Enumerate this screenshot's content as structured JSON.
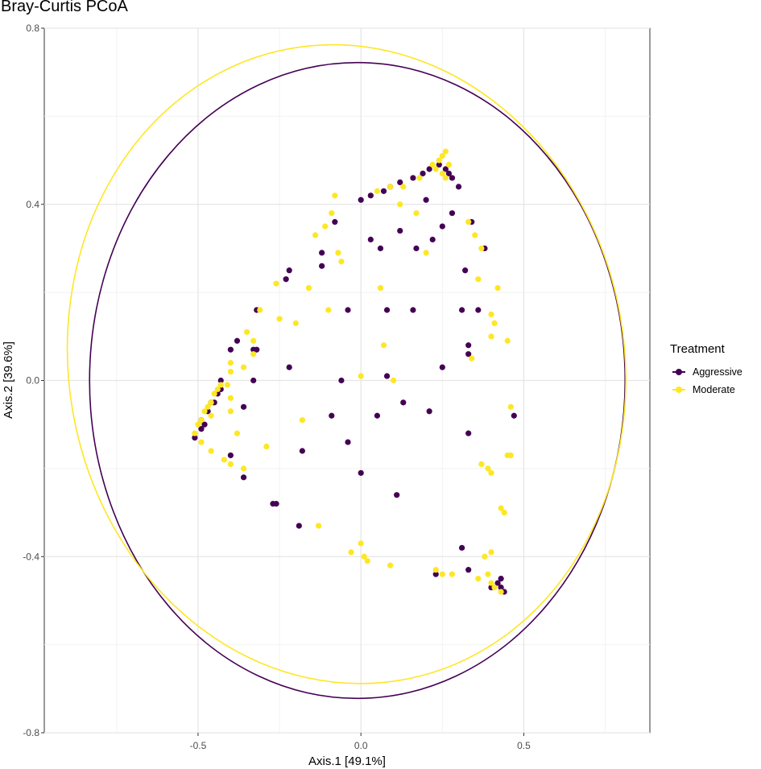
{
  "chart_data": {
    "type": "scatter",
    "title": "Bray-Curtis PCoA",
    "xlabel": "Axis.1   [49.1%]",
    "ylabel": "Axis.2   [39.6%]",
    "xlim": [
      -0.972,
      0.887
    ],
    "ylim": [
      -0.8,
      0.8
    ],
    "x_ticks": [
      -0.5,
      0.0,
      0.5
    ],
    "x_tick_labels": [
      "-0.5",
      "0.0",
      "0.5"
    ],
    "y_ticks": [
      -0.8,
      -0.4,
      0.0,
      0.4,
      0.8
    ],
    "y_tick_labels": [
      "-0.8",
      "-0.4",
      "0.0",
      "0.4",
      "0.8"
    ],
    "grid": true,
    "legend": {
      "title": "Treatment",
      "position": "right"
    },
    "series": [
      {
        "name": "Aggressive",
        "color": "#440154",
        "points": [
          [
            0.0,
            0.41
          ],
          [
            0.03,
            0.42
          ],
          [
            0.07,
            0.43
          ],
          [
            0.09,
            0.44
          ],
          [
            0.12,
            0.45
          ],
          [
            0.16,
            0.46
          ],
          [
            0.19,
            0.47
          ],
          [
            0.21,
            0.48
          ],
          [
            0.24,
            0.49
          ],
          [
            0.26,
            0.48
          ],
          [
            0.27,
            0.47
          ],
          [
            0.28,
            0.46
          ],
          [
            0.3,
            0.44
          ],
          [
            0.2,
            0.41
          ],
          [
            0.25,
            0.35
          ],
          [
            0.28,
            0.38
          ],
          [
            0.34,
            0.36
          ],
          [
            0.38,
            0.3
          ],
          [
            0.32,
            0.25
          ],
          [
            0.22,
            0.32
          ],
          [
            0.12,
            0.34
          ],
          [
            0.06,
            0.3
          ],
          [
            0.03,
            0.32
          ],
          [
            0.17,
            0.3
          ],
          [
            -0.04,
            0.16
          ],
          [
            0.08,
            0.16
          ],
          [
            0.16,
            0.16
          ],
          [
            0.31,
            0.16
          ],
          [
            0.36,
            0.16
          ],
          [
            0.33,
            0.08
          ],
          [
            0.33,
            0.06
          ],
          [
            0.25,
            0.03
          ],
          [
            0.08,
            0.01
          ],
          [
            -0.06,
            0.0
          ],
          [
            -0.09,
            -0.08
          ],
          [
            -0.04,
            -0.14
          ],
          [
            0.05,
            -0.08
          ],
          [
            0.13,
            -0.05
          ],
          [
            0.21,
            -0.07
          ],
          [
            0.33,
            -0.12
          ],
          [
            0.47,
            -0.08
          ],
          [
            0.0,
            -0.21
          ],
          [
            0.11,
            -0.26
          ],
          [
            -0.18,
            -0.16
          ],
          [
            -0.22,
            0.03
          ],
          [
            -0.32,
            0.16
          ],
          [
            -0.32,
            0.07
          ],
          [
            -0.33,
            0.0
          ],
          [
            -0.36,
            -0.06
          ],
          [
            -0.4,
            -0.17
          ],
          [
            -0.36,
            -0.22
          ],
          [
            -0.27,
            -0.28
          ],
          [
            -0.26,
            -0.28
          ],
          [
            -0.19,
            -0.33
          ],
          [
            -0.33,
            0.07
          ],
          [
            -0.4,
            0.07
          ],
          [
            -0.38,
            0.09
          ],
          [
            -0.43,
            -0.02
          ],
          [
            -0.44,
            -0.03
          ],
          [
            -0.45,
            -0.05
          ],
          [
            -0.47,
            -0.07
          ],
          [
            -0.48,
            -0.1
          ],
          [
            -0.49,
            -0.11
          ],
          [
            -0.51,
            -0.13
          ],
          [
            -0.49,
            -0.09
          ],
          [
            -0.46,
            -0.05
          ],
          [
            -0.43,
            0.0
          ],
          [
            -0.22,
            0.25
          ],
          [
            -0.23,
            0.23
          ],
          [
            -0.12,
            0.26
          ],
          [
            -0.12,
            0.29
          ],
          [
            -0.08,
            0.36
          ],
          [
            0.31,
            -0.38
          ],
          [
            0.33,
            -0.43
          ],
          [
            0.23,
            -0.44
          ],
          [
            0.43,
            -0.45
          ],
          [
            0.42,
            -0.46
          ],
          [
            0.43,
            -0.47
          ],
          [
            0.4,
            -0.47
          ],
          [
            0.44,
            -0.48
          ]
        ]
      },
      {
        "name": "Moderate",
        "color": "#FDE725",
        "points": [
          [
            0.05,
            0.43
          ],
          [
            0.09,
            0.44
          ],
          [
            0.13,
            0.44
          ],
          [
            0.18,
            0.46
          ],
          [
            0.22,
            0.49
          ],
          [
            0.24,
            0.5
          ],
          [
            0.25,
            0.51
          ],
          [
            0.26,
            0.52
          ],
          [
            0.23,
            0.48
          ],
          [
            0.25,
            0.47
          ],
          [
            0.27,
            0.49
          ],
          [
            0.26,
            0.46
          ],
          [
            0.12,
            0.4
          ],
          [
            0.17,
            0.38
          ],
          [
            0.2,
            0.29
          ],
          [
            0.33,
            0.36
          ],
          [
            0.35,
            0.33
          ],
          [
            0.37,
            0.3
          ],
          [
            0.36,
            0.23
          ],
          [
            0.42,
            0.21
          ],
          [
            0.4,
            0.15
          ],
          [
            0.41,
            0.13
          ],
          [
            0.4,
            0.1
          ],
          [
            0.45,
            0.09
          ],
          [
            0.34,
            0.05
          ],
          [
            0.06,
            0.21
          ],
          [
            0.07,
            0.08
          ],
          [
            0.0,
            0.01
          ],
          [
            0.1,
            0.0
          ],
          [
            -0.1,
            0.16
          ],
          [
            -0.16,
            0.21
          ],
          [
            -0.26,
            0.22
          ],
          [
            -0.31,
            0.16
          ],
          [
            -0.25,
            0.14
          ],
          [
            -0.2,
            0.13
          ],
          [
            -0.35,
            0.11
          ],
          [
            -0.33,
            0.09
          ],
          [
            -0.33,
            0.06
          ],
          [
            -0.36,
            0.03
          ],
          [
            -0.4,
            0.04
          ],
          [
            -0.4,
            0.02
          ],
          [
            -0.41,
            -0.01
          ],
          [
            -0.43,
            -0.01
          ],
          [
            -0.44,
            -0.02
          ],
          [
            -0.45,
            -0.03
          ],
          [
            -0.46,
            -0.05
          ],
          [
            -0.47,
            -0.06
          ],
          [
            -0.48,
            -0.07
          ],
          [
            -0.49,
            -0.09
          ],
          [
            -0.5,
            -0.1
          ],
          [
            -0.51,
            -0.12
          ],
          [
            -0.49,
            -0.14
          ],
          [
            -0.46,
            -0.16
          ],
          [
            -0.42,
            -0.18
          ],
          [
            -0.4,
            -0.19
          ],
          [
            -0.29,
            -0.15
          ],
          [
            -0.18,
            -0.09
          ],
          [
            -0.13,
            -0.33
          ],
          [
            -0.38,
            -0.12
          ],
          [
            -0.4,
            -0.07
          ],
          [
            -0.46,
            -0.08
          ],
          [
            -0.4,
            -0.04
          ],
          [
            -0.36,
            -0.2
          ],
          [
            -0.08,
            0.42
          ],
          [
            -0.09,
            0.38
          ],
          [
            -0.11,
            0.35
          ],
          [
            -0.14,
            0.33
          ],
          [
            -0.06,
            0.27
          ],
          [
            -0.07,
            0.29
          ],
          [
            0.0,
            -0.37
          ],
          [
            -0.03,
            -0.39
          ],
          [
            0.01,
            -0.4
          ],
          [
            0.02,
            -0.41
          ],
          [
            0.09,
            -0.42
          ],
          [
            0.23,
            -0.43
          ],
          [
            0.25,
            -0.44
          ],
          [
            0.28,
            -0.44
          ],
          [
            0.36,
            -0.45
          ],
          [
            0.39,
            -0.44
          ],
          [
            0.4,
            -0.46
          ],
          [
            0.41,
            -0.47
          ],
          [
            0.43,
            -0.48
          ],
          [
            0.38,
            -0.4
          ],
          [
            0.4,
            -0.39
          ],
          [
            0.43,
            -0.29
          ],
          [
            0.44,
            -0.3
          ],
          [
            0.39,
            -0.2
          ],
          [
            0.4,
            -0.21
          ],
          [
            0.37,
            -0.19
          ],
          [
            0.45,
            -0.17
          ],
          [
            0.46,
            -0.17
          ],
          [
            0.46,
            -0.06
          ]
        ]
      }
    ],
    "ellipses": [
      {
        "series": "Aggressive",
        "color": "#440154",
        "cx": -0.011,
        "cy": 0.0,
        "rx": 0.822,
        "ry": 0.722
      },
      {
        "series": "Moderate",
        "color": "#FDE725",
        "cx": -0.044,
        "cy": 0.037,
        "rx": 0.853,
        "ry": 0.728,
        "angle": 10
      }
    ]
  }
}
